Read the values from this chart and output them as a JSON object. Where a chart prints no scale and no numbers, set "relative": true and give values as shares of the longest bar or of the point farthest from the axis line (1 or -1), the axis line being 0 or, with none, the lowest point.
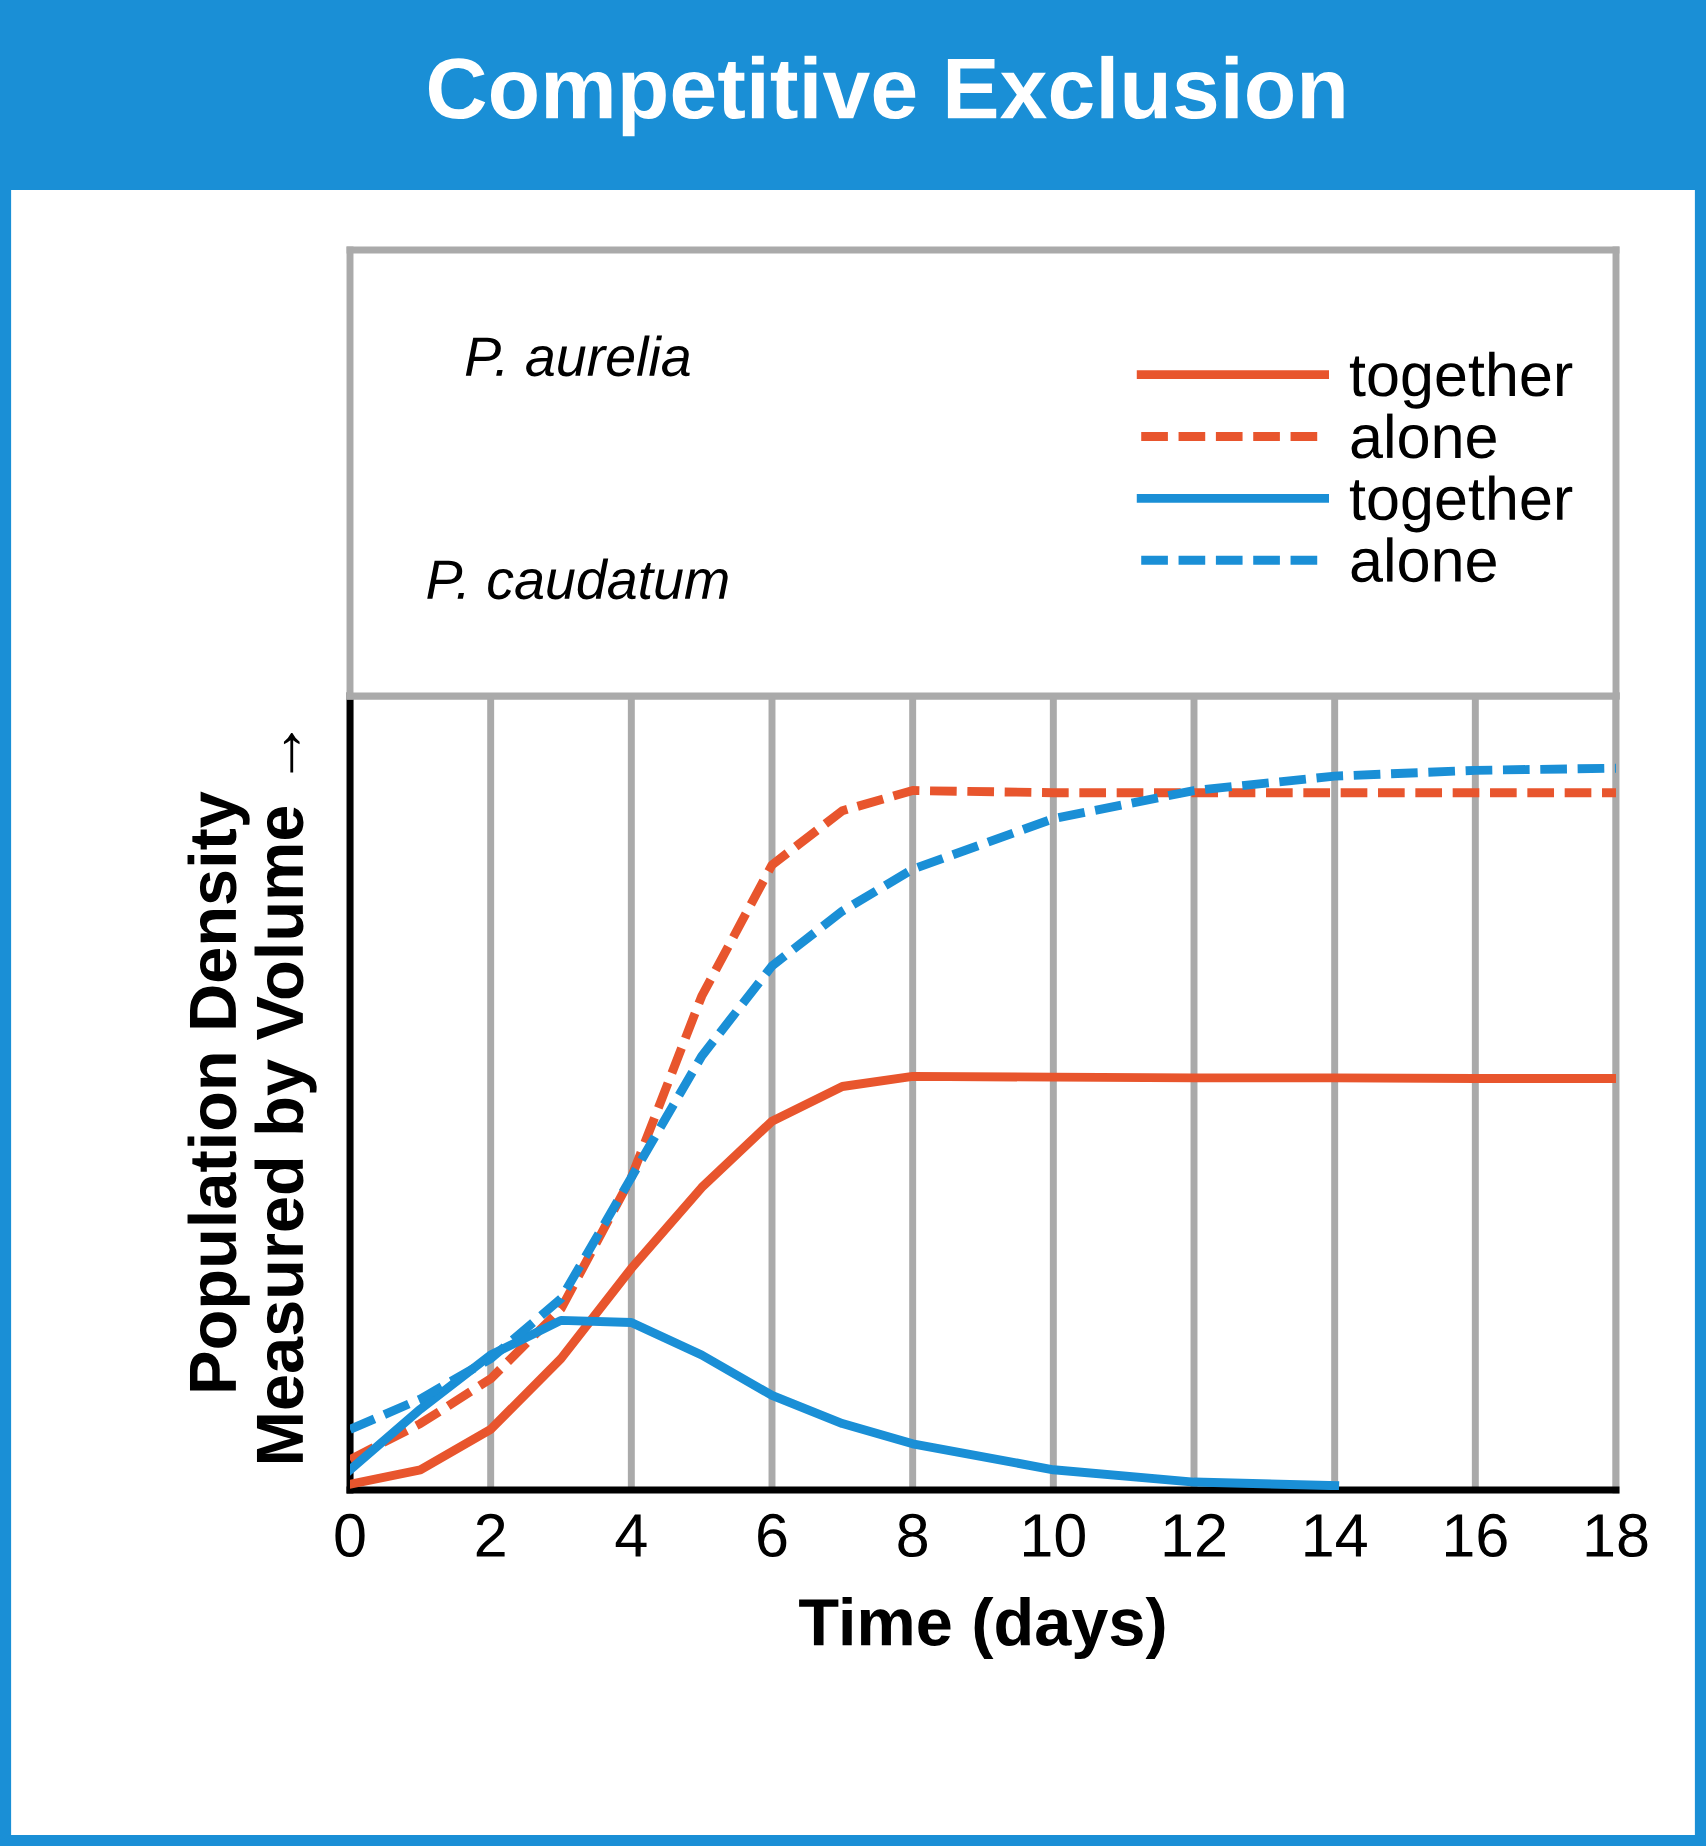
{
  "chart_data": {
    "type": "line",
    "title": "Competitive Exclusion",
    "xlabel": "Time (days)",
    "ylabel": "Population Density\nMeasured by Volume →",
    "relative": true,
    "xlim": [
      0,
      18
    ],
    "xticks": [
      0,
      2,
      4,
      6,
      8,
      10,
      12,
      14,
      16,
      18
    ],
    "grid": "x",
    "legend": "top",
    "annotations": [
      "P. aurelia",
      "P. caudatum"
    ],
    "series": [
      {
        "name": "together",
        "color": "#e8552d",
        "line_style": "solid",
        "x": [
          0,
          1,
          2,
          3,
          4,
          5,
          6,
          7,
          8,
          10,
          12,
          14,
          16,
          18
        ],
        "values": [
          0.008,
          0.028,
          0.084,
          0.182,
          0.307,
          0.419,
          0.511,
          0.559,
          0.573,
          0.572,
          0.571,
          0.571,
          0.57,
          0.57
        ]
      },
      {
        "name": "alone",
        "color": "#e8552d",
        "line_style": "dashed",
        "x": [
          0,
          1,
          2,
          3,
          4,
          5,
          6,
          7,
          8,
          10,
          12,
          14,
          16,
          18
        ],
        "values": [
          0.042,
          0.092,
          0.154,
          0.251,
          0.433,
          0.684,
          0.866,
          0.941,
          0.969,
          0.966,
          0.966,
          0.966,
          0.966,
          0.966
        ]
      },
      {
        "name": "together",
        "color": "#1a8fd6",
        "line_style": "solid",
        "x": [
          0,
          1,
          2,
          3,
          4,
          5,
          6,
          7,
          8,
          10,
          12,
          14
        ],
        "values": [
          0.028,
          0.112,
          0.187,
          0.235,
          0.232,
          0.187,
          0.131,
          0.092,
          0.064,
          0.028,
          0.011,
          0.006
        ]
      },
      {
        "name": "alone",
        "color": "#1a8fd6",
        "line_style": "dashed",
        "x": [
          0,
          1,
          2,
          3,
          4,
          5,
          6,
          7,
          8,
          10,
          12,
          14,
          16,
          18
        ],
        "values": [
          0.084,
          0.126,
          0.182,
          0.265,
          0.433,
          0.601,
          0.726,
          0.802,
          0.86,
          0.93,
          0.969,
          0.989,
          0.997,
          1.0
        ]
      }
    ]
  }
}
